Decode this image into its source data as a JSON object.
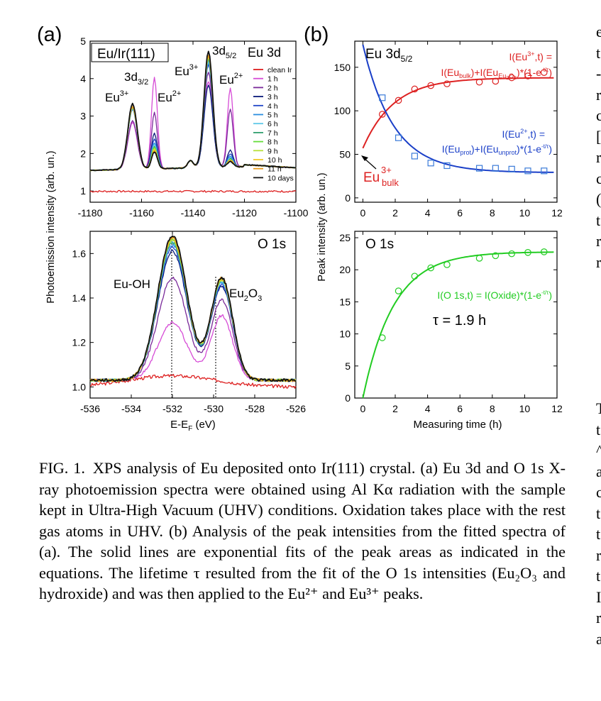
{
  "caption": {
    "label": "FIG. 1.",
    "text": "XPS analysis of Eu deposited onto Ir(111) crystal. (a) Eu 3d and O 1s X-ray photoemission spectra were obtained using Al Kα radiation with the sample kept in Ultra-High Vacuum (UHV) conditions. Oxidation takes place with the rest gas atoms in UHV. (b) Analysis of the peak intensities from the fitted spectra of (a). The solid lines are exponential fits of the peak areas as indicated in the equations. The lifetime τ resulted from the fit of the O 1s intensities (Eu₂O₃ and hydroxide) and was then applied to the Eu²⁺ and Eu³⁺ peaks."
  },
  "cut_text": [
    "e",
    "t",
    "-",
    "r",
    "c",
    "[",
    "r",
    "c",
    "(",
    "t",
    "r",
    "r",
    "",
    "",
    "",
    "",
    "",
    "",
    "T",
    "t",
    "^",
    "a",
    "c",
    "t",
    "t",
    "r",
    "t",
    "I",
    "r",
    "a"
  ],
  "colors": {
    "clean": "#dd1f1f",
    "h1": "#d64bd6",
    "h2": "#7a2a9a",
    "h3": "#0a1a7a",
    "h4": "#2045c8",
    "h5": "#2a8ee0",
    "h6": "#5cc8e8",
    "h7": "#32a070",
    "h8": "#66dd3a",
    "h9": "#b8e03a",
    "h10": "#f0c828",
    "h11": "#e89a1a",
    "d10": "#111111",
    "eu3": "#dd2222",
    "eu2": "#1a3fc8",
    "o1s": "#22cc22"
  },
  "chart_data": [
    {
      "type": "line",
      "panel_label": "(a)",
      "title": "Eu 3d",
      "box_label": "Eu/Ir(111)",
      "xlabel": "",
      "ylabel": "Photoemission intensity (arb. un.)",
      "xlim": [
        -1180,
        -1100
      ],
      "ylim": [
        0.7,
        5
      ],
      "xticks": [
        -1180,
        -1160,
        -1140,
        -1120,
        -1100
      ],
      "yticks": [
        1,
        2,
        3,
        4,
        5
      ],
      "annotations": [
        {
          "text": "3d3/2",
          "main": "3d",
          "sub": "3/2"
        },
        {
          "text": "3d5/2",
          "main": "3d",
          "sub": "5/2"
        },
        {
          "text": "Eu3+",
          "main": "Eu",
          "sup": "3+"
        },
        {
          "text": "Eu2+",
          "main": "Eu",
          "sup": "2+"
        },
        {
          "text": "Eu3+",
          "main": "Eu",
          "sup": "3+"
        },
        {
          "text": "Eu2+",
          "main": "Eu",
          "sup": "2+"
        }
      ],
      "legend": [
        "clean Ir",
        "1 h",
        "2 h",
        "3 h",
        "4 h",
        "5 h",
        "6 h",
        "7 h",
        "8 h",
        "9 h",
        "10 h",
        "11 h",
        "10 days"
      ],
      "legend_position": "right",
      "series": [
        {
          "name": "clean Ir",
          "x": [
            -1180,
            -1100
          ],
          "y": [
            1.0,
            0.98
          ]
        },
        {
          "name": "1 h",
          "x": [
            -1180,
            -1164,
            -1155,
            -1150,
            -1134,
            -1125,
            -1120,
            -1108
          ],
          "y": [
            1.55,
            3.1,
            4.1,
            2.1,
            4.15,
            3.9,
            1.75,
            1.6
          ]
        },
        {
          "name": "2 h",
          "x": [
            -1180,
            -1164,
            -1155,
            -1150,
            -1134,
            -1125,
            -1120,
            -1108
          ],
          "y": [
            1.6,
            3.0,
            3.2,
            2.0,
            4.35,
            3.45,
            1.8,
            1.65
          ]
        },
        {
          "name": "3 h",
          "x": [
            -1180,
            -1164,
            -1155,
            -1150,
            -1134,
            -1125,
            -1120,
            -1108
          ],
          "y": [
            1.6,
            3.35,
            2.7,
            1.95,
            4.05,
            2.35,
            1.9,
            1.7
          ]
        },
        {
          "name": "4 h",
          "x": [
            -1180,
            -1164,
            -1155,
            -1150,
            -1134,
            -1125,
            -1120,
            -1108
          ],
          "y": [
            1.6,
            3.3,
            2.55,
            1.95,
            4.5,
            2.2,
            1.85,
            1.7
          ]
        },
        {
          "name": "5 h",
          "x": [
            -1180,
            -1164,
            -1155,
            -1134,
            -1125,
            -1108
          ],
          "y": [
            1.6,
            3.3,
            2.4,
            4.6,
            2.05,
            1.7
          ]
        },
        {
          "name": "6 h",
          "x": [
            -1180,
            -1164,
            -1155,
            -1134,
            -1125,
            -1108
          ],
          "y": [
            1.6,
            3.3,
            2.35,
            4.65,
            2.0,
            1.7
          ]
        },
        {
          "name": "7 h",
          "x": [
            -1180,
            -1164,
            -1155,
            -1134,
            -1125,
            -1108
          ],
          "y": [
            1.6,
            3.35,
            2.3,
            4.7,
            1.95,
            1.7
          ]
        },
        {
          "name": "8 h",
          "x": [
            -1180,
            -1164,
            -1155,
            -1134,
            -1125,
            -1108
          ],
          "y": [
            1.6,
            3.35,
            2.3,
            4.7,
            1.95,
            1.7
          ]
        },
        {
          "name": "9 h",
          "x": [
            -1180,
            -1164,
            -1155,
            -1134,
            -1125,
            -1108
          ],
          "y": [
            1.6,
            3.35,
            2.25,
            4.75,
            1.95,
            1.7
          ]
        },
        {
          "name": "10 h",
          "x": [
            -1180,
            -1164,
            -1155,
            -1134,
            -1125,
            -1108
          ],
          "y": [
            1.6,
            3.35,
            2.2,
            4.75,
            1.95,
            1.7
          ]
        },
        {
          "name": "11 h",
          "x": [
            -1180,
            -1164,
            -1155,
            -1134,
            -1125,
            -1108
          ],
          "y": [
            1.6,
            3.35,
            2.2,
            4.75,
            1.95,
            1.7
          ]
        },
        {
          "name": "10 days",
          "x": [
            -1180,
            -1164,
            -1155,
            -1134,
            -1125,
            -1108
          ],
          "y": [
            1.6,
            3.4,
            2.15,
            4.8,
            1.95,
            1.7
          ]
        }
      ]
    },
    {
      "type": "line",
      "title": "O 1s",
      "xlabel": "E-EF (eV)",
      "ylabel": "",
      "xlim": [
        -536,
        -526
      ],
      "ylim": [
        0.95,
        1.7
      ],
      "xticks": [
        -536,
        -534,
        -532,
        -530,
        -528,
        -526
      ],
      "yticks": [
        1.0,
        1.2,
        1.4,
        1.6
      ],
      "annotations": [
        {
          "text": "Eu-OH"
        },
        {
          "text": "Eu2O3",
          "main": "Eu",
          "sub1": "2",
          "mid": "O",
          "sub2": "3"
        }
      ],
      "reference_lines_x": [
        -532,
        -529.6
      ],
      "series": [
        {
          "name": "clean Ir",
          "x": [
            -536,
            -532,
            -526
          ],
          "y": [
            1.0,
            1.07,
            1.0
          ]
        },
        {
          "name": "1 h",
          "x": [
            -536,
            -532,
            -530.5,
            -529.6,
            -526
          ],
          "y": [
            1.02,
            1.28,
            1.14,
            1.31,
            1.02
          ]
        },
        {
          "name": "2 h",
          "x": [
            -536,
            -532,
            -530.5,
            -529.6,
            -526
          ],
          "y": [
            1.03,
            1.49,
            1.2,
            1.4,
            1.03
          ]
        },
        {
          "name": "10 days",
          "x": [
            -536,
            -532,
            -530.5,
            -529.6,
            -526
          ],
          "y": [
            1.04,
            1.68,
            1.27,
            1.49,
            1.04
          ]
        }
      ]
    },
    {
      "type": "scatter",
      "panel_label": "(b)",
      "title": "Eu 3d5/2",
      "xlabel": "",
      "ylabel": "Peak intensity (arb. un.)",
      "xlim": [
        -0.5,
        12
      ],
      "ylim": [
        -5,
        180
      ],
      "xticks": [
        0,
        2,
        4,
        6,
        8,
        10,
        12
      ],
      "yticks": [
        0,
        50,
        100,
        150
      ],
      "equations": [
        {
          "text": "I(Eu3+,t) = I(Eubulk)+I(Eu3+Eu2O3)*(1-e-t/τ)"
        },
        {
          "text": "I(Eu2+,t) = I(Euprot)+I(Euunprot)*(1-e-t/τ)"
        }
      ],
      "annotations": [
        {
          "text": "Eu3+bulk",
          "main": "Eu",
          "sup": "3+",
          "sub": "bulk"
        }
      ],
      "series": [
        {
          "name": "Eu3+",
          "marker": "circle",
          "x": [
            1.2,
            2.2,
            3.2,
            4.2,
            5.2,
            7.2,
            8.2,
            9.2,
            10.2,
            11.2
          ],
          "y": [
            96,
            112,
            125,
            129,
            131,
            133,
            134,
            138,
            140,
            144
          ]
        },
        {
          "name": "Eu2+",
          "marker": "square",
          "x": [
            1.2,
            2.2,
            3.2,
            4.2,
            5.2,
            7.2,
            8.2,
            9.2,
            10.2,
            11.2
          ],
          "y": [
            115,
            69,
            48,
            40,
            37,
            34,
            34,
            33,
            31,
            31
          ]
        },
        {
          "name": "Eu3+ fit",
          "x": [
            0,
            12
          ],
          "y": [
            57,
            138
          ]
        },
        {
          "name": "Eu2+ fit",
          "x": [
            0,
            12
          ],
          "y": [
            176,
            29
          ]
        }
      ]
    },
    {
      "type": "scatter",
      "title": "O 1s",
      "xlabel": "Measuring time (h)",
      "ylabel": "",
      "xlim": [
        -0.5,
        12
      ],
      "ylim": [
        0,
        26
      ],
      "xticks": [
        0,
        2,
        4,
        6,
        8,
        10,
        12
      ],
      "yticks": [
        0,
        5,
        10,
        15,
        20,
        25
      ],
      "equations": [
        {
          "text": "I(O 1s,t) = I(Oxide)*(1-e-t/τ)"
        }
      ],
      "tau_text": "τ = 1.9 h",
      "series": [
        {
          "name": "O 1s",
          "marker": "circle",
          "x": [
            1.2,
            2.2,
            3.2,
            4.2,
            5.2,
            7.2,
            8.2,
            9.2,
            10.2,
            11.2
          ],
          "y": [
            9.4,
            16.7,
            19.0,
            20.3,
            20.8,
            21.8,
            22.2,
            22.5,
            22.7,
            22.8
          ]
        },
        {
          "name": "O 1s fit",
          "x": [
            0,
            12
          ],
          "y": [
            0,
            22.8
          ]
        }
      ]
    }
  ]
}
